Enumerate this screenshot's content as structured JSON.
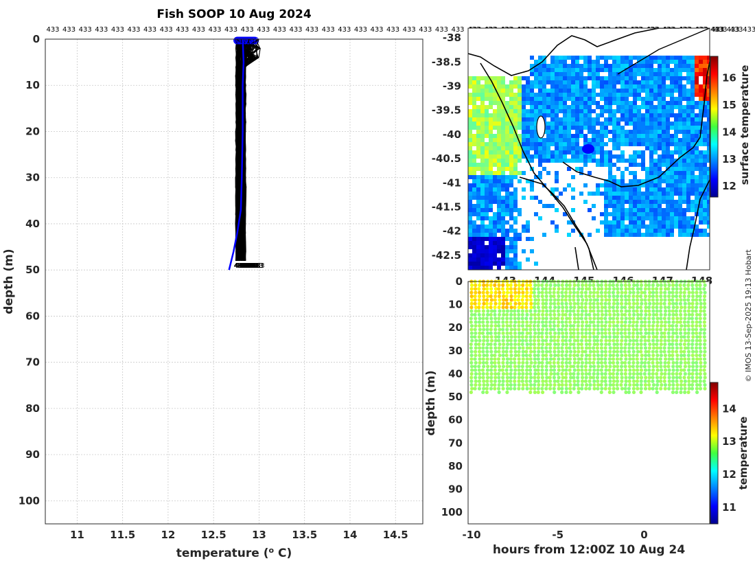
{
  "chart_data": [
    {
      "type": "line",
      "title": "Fish SOOP 10 Aug 2024",
      "xlabel": "temperature (",
      "xlabel_sup": "o",
      "xlabel_unit": " C)",
      "ylabel": "depth (m)",
      "xlim": [
        10.65,
        14.8
      ],
      "ylim": [
        0,
        105
      ],
      "xticks": [
        11,
        11.5,
        12,
        12.5,
        13,
        13.5,
        14,
        14.5
      ],
      "yticks": [
        0,
        10,
        20,
        30,
        40,
        50,
        60,
        70,
        80,
        90,
        100
      ],
      "top_label": "433",
      "top_label_count": 44,
      "profile_count": 120,
      "profile_color": "#000000",
      "mean_profile": {
        "name": "mean",
        "color": "#0000ff",
        "points": [
          [
            12.82,
            0
          ],
          [
            12.83,
            5
          ],
          [
            12.82,
            10
          ],
          [
            12.82,
            20
          ],
          [
            12.81,
            30
          ],
          [
            12.8,
            37
          ],
          [
            12.76,
            42
          ],
          [
            12.72,
            46
          ],
          [
            12.67,
            50
          ]
        ]
      },
      "profile_depth_range": [
        0,
        49
      ]
    },
    {
      "type": "heatmap",
      "xlim": [
        142.05,
        148.2
      ],
      "ylim": [
        -42.8,
        -37.8
      ],
      "yticks": [
        -38,
        -38.5,
        -39,
        -39.5,
        -40,
        -40.5,
        -41,
        -41.5,
        -42,
        -42.5
      ],
      "xticks": [
        143,
        144,
        145,
        146,
        147,
        148
      ],
      "colorbar": {
        "label": "surface temperature",
        "range": [
          11.6,
          16.8
        ],
        "ticks": [
          12,
          13,
          14,
          15,
          16
        ]
      },
      "top_label": "433"
    },
    {
      "type": "scatter",
      "xlabel": "hours from 12:00Z 10 Aug 24",
      "ylabel": "depth (m)",
      "xlim": [
        -10.2,
        3.8
      ],
      "ylim": [
        0,
        105
      ],
      "xticks": [
        -10,
        -5,
        0
      ],
      "yticks": [
        0,
        10,
        20,
        30,
        40,
        50,
        60,
        70,
        80,
        90,
        100
      ],
      "profile_time_range": [
        -10,
        3.5
      ],
      "profile_count": 60,
      "bottom_depth": 48,
      "colorbar": {
        "label": "temperature",
        "range": [
          10.5,
          14.8
        ],
        "ticks": [
          11,
          12,
          13,
          14
        ]
      }
    }
  ],
  "credit": "© IMOS 13-Sep-2025 19:13 Hobart"
}
